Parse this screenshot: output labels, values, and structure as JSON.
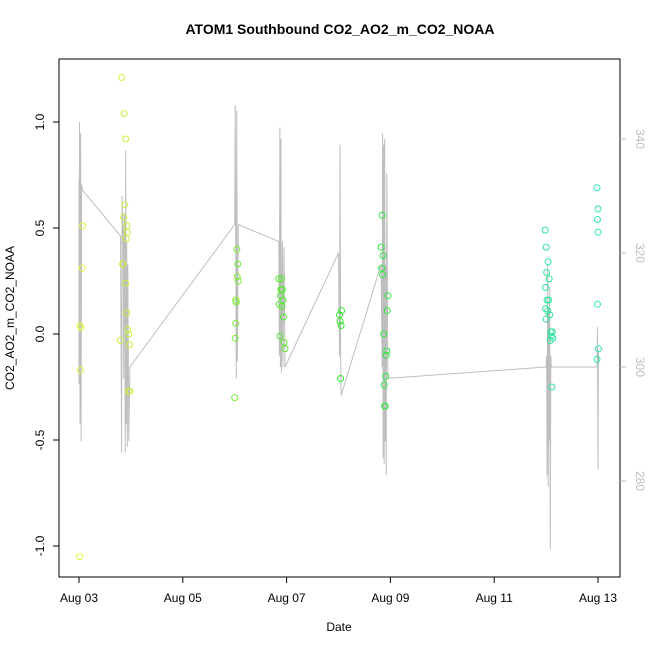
{
  "chart_data": {
    "type": "scatter",
    "title": "ATOM1 Southbound CO2_AO2_m_CO2_NOAA",
    "xlabel": "Date",
    "ylabel": "CO2_AO2_m_CO2_NOAA",
    "x_ticks": [
      {
        "value": 3,
        "label": "Aug 03"
      },
      {
        "value": 5,
        "label": "Aug 05"
      },
      {
        "value": 7,
        "label": "Aug 07"
      },
      {
        "value": 9,
        "label": "Aug 09"
      },
      {
        "value": 11,
        "label": "Aug 11"
      },
      {
        "value": 13,
        "label": "Aug 13"
      }
    ],
    "xlim": [
      2.8,
      13.4
    ],
    "ylim": [
      -1.1,
      1.3
    ],
    "y_ticks": [
      {
        "value": -1.0,
        "label": "-1.0"
      },
      {
        "value": -0.5,
        "label": "-0.5"
      },
      {
        "value": 0.0,
        "label": "0.0"
      },
      {
        "value": 0.5,
        "label": "0.5"
      },
      {
        "value": 1.0,
        "label": "1.0"
      }
    ],
    "y2lim": [
      262,
      348
    ],
    "y2_ticks": [
      {
        "value": 280,
        "label": "280"
      },
      {
        "value": 300,
        "label": "300"
      },
      {
        "value": 320,
        "label": "320"
      },
      {
        "value": 340,
        "label": "340"
      }
    ],
    "grid": false,
    "legend": "none",
    "secondary_axis_color": "#bebebe",
    "line_color": "#bebebe",
    "point_colors": {
      "start": "#e6f542",
      "mid": "#33e62e",
      "end": "#2ee6b8"
    },
    "points": [
      {
        "x": 3.01,
        "y": -1.05
      },
      {
        "x": 3.02,
        "y": 0.04
      },
      {
        "x": 3.03,
        "y": -0.17
      },
      {
        "x": 3.04,
        "y": 0.03
      },
      {
        "x": 3.06,
        "y": 0.31
      },
      {
        "x": 3.07,
        "y": 0.51
      },
      {
        "x": 3.82,
        "y": 1.21
      },
      {
        "x": 3.84,
        "y": 0.33
      },
      {
        "x": 3.85,
        "y": 0.33
      },
      {
        "x": 3.8,
        "y": -0.03
      },
      {
        "x": 3.86,
        "y": 0.55
      },
      {
        "x": 3.88,
        "y": 0.61
      },
      {
        "x": 3.87,
        "y": 1.04
      },
      {
        "x": 3.9,
        "y": 0.92
      },
      {
        "x": 3.91,
        "y": 0.45
      },
      {
        "x": 3.92,
        "y": 0.51
      },
      {
        "x": 3.93,
        "y": 0.48
      },
      {
        "x": 3.94,
        "y": 0.02
      },
      {
        "x": 3.95,
        "y": -0.27
      },
      {
        "x": 3.96,
        "y": 0.0
      },
      {
        "x": 3.97,
        "y": -0.05
      },
      {
        "x": 3.9,
        "y": 0.24
      },
      {
        "x": 3.92,
        "y": 0.1
      },
      {
        "x": 3.98,
        "y": -0.27
      },
      {
        "x": 6.0,
        "y": -0.3
      },
      {
        "x": 6.01,
        "y": -0.02
      },
      {
        "x": 6.02,
        "y": 0.05
      },
      {
        "x": 6.02,
        "y": 0.16
      },
      {
        "x": 6.03,
        "y": 0.15
      },
      {
        "x": 6.04,
        "y": 0.4
      },
      {
        "x": 6.05,
        "y": 0.27
      },
      {
        "x": 6.06,
        "y": 0.33
      },
      {
        "x": 6.07,
        "y": 0.25
      },
      {
        "x": 6.85,
        "y": 0.26
      },
      {
        "x": 6.86,
        "y": 0.14
      },
      {
        "x": 6.87,
        "y": -0.01
      },
      {
        "x": 6.88,
        "y": 0.18
      },
      {
        "x": 6.89,
        "y": 0.21
      },
      {
        "x": 6.9,
        "y": 0.26
      },
      {
        "x": 6.91,
        "y": 0.13
      },
      {
        "x": 6.92,
        "y": 0.21
      },
      {
        "x": 6.93,
        "y": 0.16
      },
      {
        "x": 6.94,
        "y": 0.08
      },
      {
        "x": 6.95,
        "y": -0.04
      },
      {
        "x": 6.97,
        "y": -0.07
      },
      {
        "x": 8.02,
        "y": 0.09
      },
      {
        "x": 8.03,
        "y": 0.06
      },
      {
        "x": 8.04,
        "y": -0.21
      },
      {
        "x": 8.05,
        "y": 0.04
      },
      {
        "x": 8.06,
        "y": 0.11
      },
      {
        "x": 8.82,
        "y": 0.41
      },
      {
        "x": 8.83,
        "y": 0.31
      },
      {
        "x": 8.84,
        "y": 0.56
      },
      {
        "x": 8.85,
        "y": 0.28
      },
      {
        "x": 8.86,
        "y": 0.37
      },
      {
        "x": 8.87,
        "y": 0.0
      },
      {
        "x": 8.88,
        "y": -0.24
      },
      {
        "x": 8.89,
        "y": -0.34
      },
      {
        "x": 8.9,
        "y": -0.34
      },
      {
        "x": 8.91,
        "y": -0.2
      },
      {
        "x": 8.92,
        "y": -0.1
      },
      {
        "x": 8.93,
        "y": -0.08
      },
      {
        "x": 8.94,
        "y": 0.11
      },
      {
        "x": 8.95,
        "y": 0.18
      },
      {
        "x": 11.98,
        "y": 0.49
      },
      {
        "x": 11.99,
        "y": 0.22
      },
      {
        "x": 12.0,
        "y": 0.41
      },
      {
        "x": 12.01,
        "y": 0.29
      },
      {
        "x": 12.02,
        "y": 0.16
      },
      {
        "x": 12.03,
        "y": 0.11
      },
      {
        "x": 12.04,
        "y": 0.34
      },
      {
        "x": 12.05,
        "y": 0.16
      },
      {
        "x": 12.06,
        "y": 0.26
      },
      {
        "x": 12.07,
        "y": 0.09
      },
      {
        "x": 12.08,
        "y": -0.03
      },
      {
        "x": 12.09,
        "y": 0.01
      },
      {
        "x": 12.1,
        "y": -0.01
      },
      {
        "x": 12.11,
        "y": -0.25
      },
      {
        "x": 12.12,
        "y": 0.01
      },
      {
        "x": 12.13,
        "y": -0.02
      },
      {
        "x": 11.99,
        "y": 0.12
      },
      {
        "x": 12.0,
        "y": 0.07
      },
      {
        "x": 12.98,
        "y": 0.69
      },
      {
        "x": 12.99,
        "y": 0.54
      },
      {
        "x": 13.0,
        "y": 0.59
      },
      {
        "x": 13.0,
        "y": 0.48
      },
      {
        "x": 12.99,
        "y": 0.14
      },
      {
        "x": 12.98,
        "y": -0.12
      },
      {
        "x": 13.01,
        "y": -0.07
      }
    ],
    "secondary_line": [
      [
        3.0,
        333
      ],
      [
        3.0,
        297
      ],
      [
        3.01,
        343
      ],
      [
        3.02,
        290
      ],
      [
        3.03,
        341
      ],
      [
        3.04,
        287
      ],
      [
        3.05,
        332
      ],
      [
        3.07,
        331
      ],
      [
        3.8,
        323
      ],
      [
        3.82,
        285
      ],
      [
        3.83,
        330
      ],
      [
        3.85,
        323
      ],
      [
        3.86,
        298
      ],
      [
        3.87,
        327
      ],
      [
        3.88,
        325
      ],
      [
        3.89,
        285
      ],
      [
        3.9,
        338
      ],
      [
        3.91,
        290
      ],
      [
        3.92,
        322
      ],
      [
        3.93,
        286
      ],
      [
        3.94,
        318
      ],
      [
        3.96,
        287
      ],
      [
        3.98,
        300
      ],
      [
        6.0,
        325
      ],
      [
        6.01,
        346
      ],
      [
        6.02,
        323
      ],
      [
        6.03,
        298
      ],
      [
        6.04,
        345
      ],
      [
        6.05,
        301
      ],
      [
        6.07,
        325
      ],
      [
        6.85,
        322
      ],
      [
        6.86,
        302
      ],
      [
        6.87,
        342
      ],
      [
        6.88,
        300
      ],
      [
        6.89,
        340
      ],
      [
        6.9,
        299
      ],
      [
        6.92,
        322
      ],
      [
        6.93,
        300
      ],
      [
        6.95,
        321
      ],
      [
        6.97,
        300
      ],
      [
        8.0,
        320
      ],
      [
        8.02,
        302
      ],
      [
        8.03,
        339
      ],
      [
        8.04,
        303
      ],
      [
        8.05,
        295
      ],
      [
        8.82,
        318
      ],
      [
        8.84,
        300
      ],
      [
        8.85,
        341
      ],
      [
        8.86,
        284
      ],
      [
        8.87,
        339
      ],
      [
        8.88,
        283
      ],
      [
        8.89,
        340
      ],
      [
        8.9,
        287
      ],
      [
        8.91,
        318
      ],
      [
        8.92,
        281
      ],
      [
        8.93,
        334
      ],
      [
        8.95,
        298
      ],
      [
        12.0,
        300
      ],
      [
        12.01,
        302
      ],
      [
        12.02,
        281
      ],
      [
        12.03,
        318
      ],
      [
        12.04,
        279
      ],
      [
        12.05,
        310
      ],
      [
        12.06,
        287
      ],
      [
        12.07,
        314
      ],
      [
        12.08,
        268
      ],
      [
        12.09,
        302
      ],
      [
        12.1,
        300
      ],
      [
        12.98,
        300
      ],
      [
        12.99,
        307
      ],
      [
        13.0,
        282
      ],
      [
        13.01,
        303
      ]
    ]
  }
}
